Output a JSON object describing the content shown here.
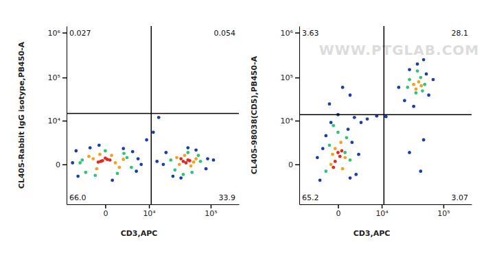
{
  "chart_data": [
    {
      "type": "scatter",
      "x_label": "CD3,APC",
      "y_label": "CL405-Rabbit IgG isotype,PB450-A",
      "log": true,
      "xlim": [
        -8000,
        262144
      ],
      "ylim": [
        -8000,
        1400000
      ],
      "xticks": [
        0,
        {
          "value": 10000,
          "label": "10⁴"
        },
        {
          "value": 100000,
          "label": "10⁵"
        }
      ],
      "yticks": [
        0,
        {
          "value": 10000,
          "label": "10⁴"
        },
        {
          "value": 100000,
          "label": "10⁵"
        },
        {
          "value": 1000000,
          "label": "10⁶"
        }
      ],
      "quadrant_gate": {
        "x": 11000,
        "y": 15000
      },
      "quadrant_values": [
        0.027,
        0.054,
        66,
        33.9
      ],
      "quadrant_value_labels": [
        "0.027",
        "0.054",
        "66.0",
        "33.9"
      ],
      "series": [
        {
          "color": "#1a3fa8",
          "x": [
            -6000,
            6000,
            -5000,
            5500,
            -2000,
            2500,
            -4500,
            4500,
            800,
            -700,
            7000,
            9000,
            18000,
            90000,
            20000,
            85000,
            35000,
            60000,
            45000,
            110000,
            14000,
            26000,
            12000,
            15000
          ],
          "values": [
            100,
            400,
            1200,
            -500,
            1600,
            1500,
            -1000,
            1100,
            -1500,
            2000,
            0,
            3000,
            0,
            400,
            1000,
            -300,
            -1200,
            1300,
            1600,
            300,
            200,
            -1000,
            5000,
            12000
          ]
        },
        {
          "color": "#34c27a",
          "x": [
            -3500,
            3200,
            -2800,
            2600,
            -4000,
            4200,
            0,
            -1200,
            1500,
            24000,
            70000,
            28000,
            65000,
            45000,
            38000,
            52000
          ],
          "values": [
            300,
            500,
            -600,
            900,
            100,
            -200,
            1200,
            -900,
            -700,
            300,
            200,
            -400,
            700,
            1000,
            -800,
            -600
          ]
        },
        {
          "color": "#f5a021",
          "x": [
            -1500,
            1200,
            -2200,
            1800,
            -600,
            700,
            -1000,
            2500,
            30000,
            55000,
            40000,
            50000,
            33000,
            60000
          ],
          "values": [
            400,
            100,
            600,
            -200,
            800,
            700,
            -300,
            350,
            500,
            150,
            700,
            -100,
            0,
            400
          ]
        },
        {
          "color": "#e4261c",
          "x": [
            -300,
            200,
            -800,
            500,
            0,
            -500,
            38000,
            45000,
            42000,
            35000,
            48000
          ],
          "values": [
            250,
            350,
            150,
            300,
            450,
            200,
            200,
            300,
            100,
            400,
            250
          ]
        }
      ]
    },
    {
      "type": "scatter",
      "x_label": "CD3,APC",
      "y_label": "CL405-98038(CD5),PB450-A",
      "watermark": "WWW.PTGLAB.COM",
      "log": true,
      "xlim": [
        -8000,
        262144
      ],
      "ylim": [
        -8000,
        1400000
      ],
      "xticks": [
        0,
        {
          "value": 10000,
          "label": "10⁴"
        },
        {
          "value": 100000,
          "label": "10⁵"
        }
      ],
      "yticks": [
        0,
        {
          "value": 10000,
          "label": "10⁴"
        },
        {
          "value": 100000,
          "label": "10⁵"
        },
        {
          "value": 1000000,
          "label": "10⁶"
        }
      ],
      "quadrant_gate": {
        "x": 11000,
        "y": 14000
      },
      "quadrant_values": [
        3.63,
        28.1,
        65.2,
        3.07
      ],
      "quadrant_value_labels": [
        "3.63",
        "28.1",
        "65.2",
        "3.07"
      ],
      "series": [
        {
          "color": "#1a3fa8",
          "x": [
            -2500,
            2500,
            -2000,
            1800,
            -1500,
            1200,
            -800,
            2200,
            0,
            -3000,
            3000,
            1500,
            25000,
            60000,
            20000,
            70000,
            40000,
            30000,
            50000,
            35000,
            55000,
            -1000,
            1500,
            500,
            30000,
            50000,
            45000,
            5000,
            8000,
            12000,
            3500
          ],
          "values": [
            -1500,
            -800,
            1500,
            2500,
            4000,
            6000,
            9000,
            12000,
            14000,
            500,
            800,
            -1200,
            30000,
            40000,
            60000,
            90000,
            200000,
            150000,
            250000,
            22000,
            120000,
            25000,
            40000,
            60000,
            1000,
            3000,
            -500,
            11000,
            13000,
            12500,
            9000
          ]
        },
        {
          "color": "#34c27a",
          "x": [
            -1500,
            1500,
            -1000,
            1000,
            0,
            -500,
            800,
            28000,
            45000,
            38000,
            52000,
            30000,
            40000,
            48000
          ],
          "values": [
            -500,
            300,
            2000,
            3500,
            5000,
            7500,
            1000,
            60000,
            100000,
            45000,
            70000,
            90000,
            140000,
            50000
          ]
        },
        {
          "color": "#f5a021",
          "x": [
            -800,
            800,
            -300,
            300,
            500,
            -600,
            35000,
            42000,
            38000,
            46000
          ],
          "values": [
            0,
            500,
            1500,
            2500,
            -300,
            800,
            70000,
            80000,
            55000,
            65000
          ]
        },
        {
          "color": "#e4261c",
          "x": [
            -300,
            200,
            0,
            -500,
            400
          ],
          "values": [
            200,
            600,
            1000,
            -200,
            1200
          ]
        }
      ]
    }
  ]
}
